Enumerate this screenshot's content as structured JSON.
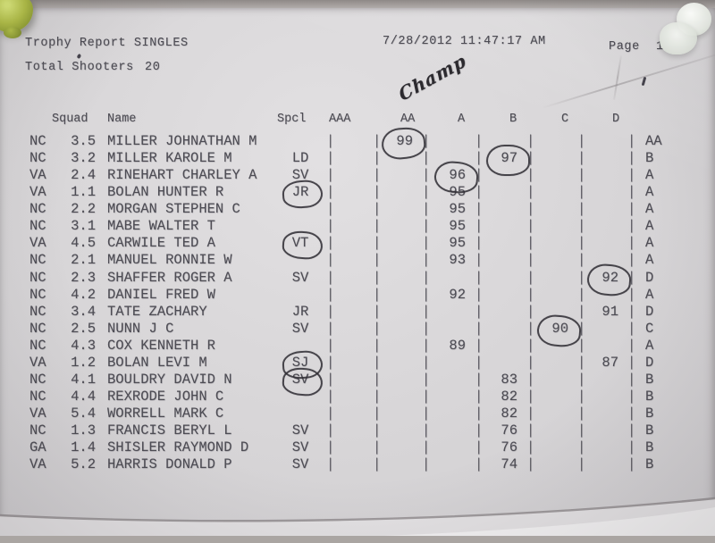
{
  "header": {
    "title": "Trophy Report SINGLES",
    "total_shooters_label": "Total Shooters",
    "total_shooters_value": "20",
    "datetime": "7/28/2012 11:47:17 AM",
    "page_label": "Page",
    "page_number": "1"
  },
  "annotations": {
    "champ_note": "Champ"
  },
  "decor": {
    "pins": [
      "green-pushpin",
      "white-pushpin"
    ]
  },
  "colors": {
    "paper": "#d7d5d7",
    "ink": "#4d4c54",
    "pen": "#312f36",
    "pin_green": "#a9b546",
    "pin_white": "#e0e4dd"
  },
  "table": {
    "separator_glyph": "|",
    "columns": [
      "Squad",
      "Name",
      "Spcl",
      "AAA",
      "AA",
      "A",
      "B",
      "C",
      "D"
    ],
    "rows": [
      {
        "state": "NC",
        "squad": "3.5",
        "name": "MILLER JOHNATHAN M",
        "spcl": "",
        "score_col": "AA",
        "score": "99",
        "class": "AA",
        "score_circled": true,
        "spcl_circled": false
      },
      {
        "state": "NC",
        "squad": "3.2",
        "name": "MILLER KAROLE M",
        "spcl": "LD",
        "score_col": "B",
        "score": "97",
        "class": "B",
        "score_circled": true,
        "spcl_circled": false
      },
      {
        "state": "VA",
        "squad": "2.4",
        "name": "RINEHART CHARLEY A",
        "spcl": "SV",
        "score_col": "A",
        "score": "96",
        "class": "A",
        "score_circled": true,
        "spcl_circled": false
      },
      {
        "state": "VA",
        "squad": "1.1",
        "name": "BOLAN HUNTER R",
        "spcl": "JR",
        "score_col": "A",
        "score": "95",
        "class": "A",
        "score_circled": false,
        "spcl_circled": true
      },
      {
        "state": "NC",
        "squad": "2.2",
        "name": "MORGAN STEPHEN C",
        "spcl": "",
        "score_col": "A",
        "score": "95",
        "class": "A",
        "score_circled": false,
        "spcl_circled": false
      },
      {
        "state": "NC",
        "squad": "3.1",
        "name": "MABE WALTER T",
        "spcl": "",
        "score_col": "A",
        "score": "95",
        "class": "A",
        "score_circled": false,
        "spcl_circled": false
      },
      {
        "state": "VA",
        "squad": "4.5",
        "name": "CARWILE TED A",
        "spcl": "VT",
        "score_col": "A",
        "score": "95",
        "class": "A",
        "score_circled": false,
        "spcl_circled": true
      },
      {
        "state": "NC",
        "squad": "2.1",
        "name": "MANUEL RONNIE W",
        "spcl": "",
        "score_col": "A",
        "score": "93",
        "class": "A",
        "score_circled": false,
        "spcl_circled": false
      },
      {
        "state": "NC",
        "squad": "2.3",
        "name": "SHAFFER ROGER A",
        "spcl": "SV",
        "score_col": "D",
        "score": "92",
        "class": "D",
        "score_circled": true,
        "spcl_circled": false
      },
      {
        "state": "NC",
        "squad": "4.2",
        "name": "DANIEL FRED W",
        "spcl": "",
        "score_col": "A",
        "score": "92",
        "class": "A",
        "score_circled": false,
        "spcl_circled": false
      },
      {
        "state": "NC",
        "squad": "3.4",
        "name": "TATE ZACHARY",
        "spcl": "JR",
        "score_col": "D",
        "score": "91",
        "class": "D",
        "score_circled": false,
        "spcl_circled": false
      },
      {
        "state": "NC",
        "squad": "2.5",
        "name": "NUNN J C",
        "spcl": "SV",
        "score_col": "C",
        "score": "90",
        "class": "C",
        "score_circled": true,
        "spcl_circled": false
      },
      {
        "state": "NC",
        "squad": "4.3",
        "name": "COX KENNETH R",
        "spcl": "",
        "score_col": "A",
        "score": "89",
        "class": "A",
        "score_circled": false,
        "spcl_circled": false
      },
      {
        "state": "VA",
        "squad": "1.2",
        "name": "BOLAN LEVI M",
        "spcl": "SJ",
        "score_col": "D",
        "score": "87",
        "class": "D",
        "score_circled": false,
        "spcl_circled": true
      },
      {
        "state": "NC",
        "squad": "4.1",
        "name": "BOULDRY DAVID N",
        "spcl": "SV",
        "score_col": "B",
        "score": "83",
        "class": "B",
        "score_circled": false,
        "spcl_circled": true
      },
      {
        "state": "NC",
        "squad": "4.4",
        "name": "REXRODE JOHN C",
        "spcl": "",
        "score_col": "B",
        "score": "82",
        "class": "B",
        "score_circled": false,
        "spcl_circled": false
      },
      {
        "state": "VA",
        "squad": "5.4",
        "name": "WORRELL MARK C",
        "spcl": "",
        "score_col": "B",
        "score": "82",
        "class": "B",
        "score_circled": false,
        "spcl_circled": false
      },
      {
        "state": "NC",
        "squad": "1.3",
        "name": "FRANCIS BERYL L",
        "spcl": "SV",
        "score_col": "B",
        "score": "76",
        "class": "B",
        "score_circled": false,
        "spcl_circled": false
      },
      {
        "state": "GA",
        "squad": "1.4",
        "name": "SHISLER RAYMOND D",
        "spcl": "SV",
        "score_col": "B",
        "score": "76",
        "class": "B",
        "score_circled": false,
        "spcl_circled": false
      },
      {
        "state": "VA",
        "squad": "5.2",
        "name": "HARRIS DONALD P",
        "spcl": "SV",
        "score_col": "B",
        "score": "74",
        "class": "B",
        "score_circled": false,
        "spcl_circled": false
      }
    ]
  }
}
